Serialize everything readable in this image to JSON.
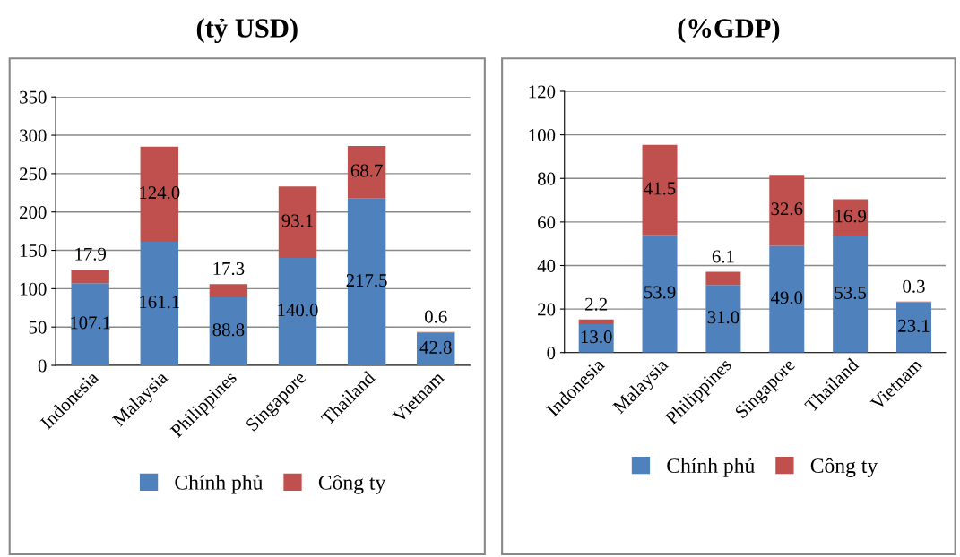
{
  "chart_data": [
    {
      "type": "bar",
      "title": "(tỷ USD)",
      "stacked": true,
      "categories": [
        "Indonesia",
        "Malaysia",
        "Philippines",
        "Singapore",
        "Thailand",
        "Vietnam"
      ],
      "series": [
        {
          "name": "Chính phủ",
          "color": "#4f81bd",
          "values": [
            107.1,
            161.1,
            88.8,
            140.0,
            217.5,
            42.8
          ],
          "value_labels": [
            "107.1",
            "161.1",
            "88.8",
            "140.0",
            "217.5",
            "42.8"
          ]
        },
        {
          "name": "Công ty",
          "color": "#c0504d",
          "values": [
            17.9,
            124.0,
            17.3,
            93.1,
            68.7,
            0.6
          ],
          "value_labels": [
            "17.9",
            "124.0",
            "17.3",
            "93.1",
            "68.7",
            "0.6"
          ]
        }
      ],
      "ylim": [
        0,
        350
      ],
      "yticks": [
        0,
        50,
        100,
        150,
        200,
        250,
        300,
        350
      ],
      "grid": "y",
      "legend": "bottom"
    },
    {
      "type": "bar",
      "title": "(%GDP)",
      "stacked": true,
      "categories": [
        "Indonesia",
        "Malaysia",
        "Philippines",
        "Singapore",
        "Thailand",
        "Vietnam"
      ],
      "series": [
        {
          "name": "Chính phủ",
          "color": "#4f81bd",
          "values": [
            13.0,
            53.9,
            31.0,
            49.0,
            53.5,
            23.1
          ],
          "value_labels": [
            "13.0",
            "53.9",
            "31.0",
            "49.0",
            "53.5",
            "23.1"
          ]
        },
        {
          "name": "Công ty",
          "color": "#c0504d",
          "values": [
            2.2,
            41.5,
            6.1,
            32.6,
            16.9,
            0.3
          ],
          "value_labels": [
            "2.2",
            "41.5",
            "6.1",
            "32.6",
            "16.9",
            "0.3"
          ]
        }
      ],
      "ylim": [
        0,
        120
      ],
      "yticks": [
        0,
        20,
        40,
        60,
        80,
        100,
        120
      ],
      "grid": "y",
      "legend": "bottom"
    }
  ]
}
